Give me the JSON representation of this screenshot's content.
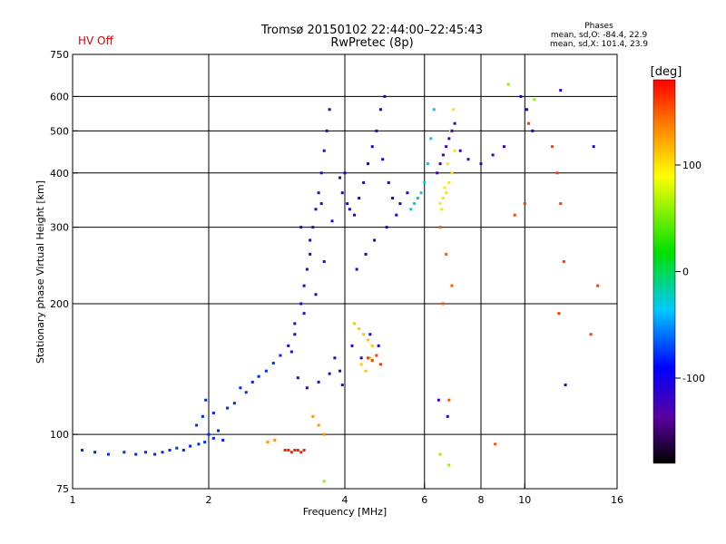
{
  "header": {
    "title_line1": "Tromsø 20150102 22:44:00–22:45:43",
    "title_line2": "RwPretec (8p)",
    "status_text": "HV Off",
    "status_color": "#dd0000",
    "stats_title": "Phases",
    "stats_line1": "mean, sd,O: -84.4, 22.9",
    "stats_line2": "mean, sd,X: 101.4, 23.9"
  },
  "colorbar": {
    "unit": "[deg]",
    "ticks": [
      "100",
      "0",
      "-100"
    ],
    "tick_values": [
      100,
      0,
      -100
    ],
    "range": [
      -180,
      180
    ],
    "colormap": "rainbow"
  },
  "chart_data": {
    "type": "scatter",
    "title": "Tromsø 20150102 22:44:00–22:45:43",
    "subtitle": "RwPretec (8p)",
    "xlabel": "Frequency [MHz]",
    "ylabel": "Stationary phase Virtual Height [km]",
    "x_scale": "log",
    "y_scale": "log",
    "xlim": [
      1,
      16
    ],
    "ylim": [
      75,
      750
    ],
    "x_ticks": [
      "1",
      "2",
      "4",
      "6",
      "8",
      "10",
      "16"
    ],
    "x_tick_values": [
      1,
      2,
      4,
      6,
      8,
      10,
      16
    ],
    "y_ticks": [
      "75",
      "100",
      "200",
      "300",
      "400",
      "500",
      "600",
      "750"
    ],
    "y_tick_values": [
      75,
      100,
      200,
      300,
      400,
      500,
      600,
      750
    ],
    "x_gridlines": [
      2,
      4,
      6,
      8,
      10
    ],
    "y_gridlines": [
      100,
      200,
      300,
      400,
      500,
      600
    ],
    "color_variable": "phase [deg]",
    "series": [
      {
        "x": [
          1.05,
          1.12,
          1.2,
          1.3,
          1.38,
          1.45,
          1.52,
          1.58,
          1.64,
          1.7,
          1.76,
          1.82,
          1.9,
          1.96
        ],
        "y": [
          92,
          91,
          90,
          91,
          90,
          91,
          90,
          91,
          92,
          93,
          92,
          94,
          95,
          96
        ],
        "phase": -80
      },
      {
        "x": [
          1.88,
          1.94,
          2.0,
          2.05,
          2.1,
          2.15,
          2.05,
          1.97,
          2.2,
          2.28,
          2.35,
          2.42,
          2.5,
          2.58,
          2.68,
          2.78,
          2.88
        ],
        "y": [
          105,
          110,
          100,
          98,
          102,
          97,
          112,
          120,
          115,
          118,
          128,
          125,
          132,
          136,
          140,
          146,
          152
        ],
        "phase": -80
      },
      {
        "x": [
          2.95,
          3.0,
          3.05,
          3.1,
          3.15,
          3.2,
          3.25
        ],
        "y": [
          92,
          92,
          91,
          92,
          92,
          91,
          92
        ],
        "phase": 170
      },
      {
        "x": [
          2.7,
          2.8,
          3.4,
          3.5,
          3.6
        ],
        "y": [
          96,
          97,
          110,
          105,
          100
        ],
        "phase": 130
      },
      {
        "x": [
          3.0,
          3.1,
          3.2,
          3.25,
          3.3,
          3.35,
          3.4,
          3.45,
          3.5,
          3.55,
          3.6,
          3.65,
          3.7,
          3.8,
          3.9,
          3.95,
          3.15,
          3.3,
          3.5,
          3.7,
          3.2,
          3.35,
          3.55,
          3.1,
          3.25,
          3.45,
          3.6,
          3.75,
          3.9,
          3.05
        ],
        "y": [
          160,
          180,
          200,
          220,
          240,
          260,
          300,
          330,
          360,
          400,
          450,
          500,
          560,
          150,
          140,
          130,
          135,
          128,
          132,
          138,
          300,
          280,
          340,
          170,
          190,
          210,
          250,
          310,
          390,
          155
        ],
        "phase": -115
      },
      {
        "x": [
          3.95,
          4.0,
          4.05,
          4.1,
          4.2,
          4.3,
          4.4,
          4.5,
          4.6,
          4.7,
          4.8,
          4.9,
          5.0,
          5.1,
          5.3,
          5.5,
          4.15,
          4.35,
          4.55,
          4.75,
          4.95,
          5.2,
          4.25,
          4.45,
          4.65,
          4.85
        ],
        "y": [
          360,
          400,
          340,
          330,
          320,
          350,
          380,
          420,
          460,
          500,
          560,
          600,
          380,
          350,
          340,
          360,
          160,
          150,
          170,
          160,
          300,
          320,
          240,
          260,
          280,
          430
        ],
        "phase": -105
      },
      {
        "x": [
          4.2,
          4.3,
          4.4,
          4.5,
          4.6,
          4.55,
          4.45,
          4.35
        ],
        "y": [
          180,
          175,
          170,
          165,
          160,
          150,
          140,
          145
        ],
        "phase": 110
      },
      {
        "x": [
          4.5,
          4.6,
          4.7,
          4.8
        ],
        "y": [
          150,
          148,
          152,
          145
        ],
        "phase": 160
      },
      {
        "x": [
          5.6,
          5.7,
          5.8,
          5.9,
          6.0,
          6.1,
          6.2,
          6.3
        ],
        "y": [
          330,
          340,
          350,
          360,
          380,
          420,
          480,
          560
        ],
        "phase": -30
      },
      {
        "x": [
          6.5,
          6.6,
          6.7,
          6.8,
          6.9,
          7.0,
          6.55,
          6.65,
          6.75,
          6.85,
          6.95
        ],
        "y": [
          340,
          350,
          360,
          380,
          400,
          450,
          330,
          370,
          420,
          500,
          560
        ],
        "phase": 100
      },
      {
        "x": [
          6.4,
          6.5,
          6.6,
          6.7,
          6.8,
          6.9,
          7.0,
          7.2,
          7.5,
          8.0,
          8.5,
          9.0,
          6.45,
          6.75
        ],
        "y": [
          400,
          420,
          440,
          460,
          480,
          500,
          520,
          450,
          430,
          420,
          440,
          460,
          120,
          110
        ],
        "phase": -120
      },
      {
        "x": [
          6.5,
          6.7,
          6.9,
          6.6,
          6.8,
          8.6
        ],
        "y": [
          300,
          260,
          220,
          200,
          120,
          95
        ],
        "phase": 150
      },
      {
        "x": [
          9.5,
          10.0,
          10.2,
          11.5,
          11.8,
          12.0,
          12.2,
          11.9,
          14.5,
          14.0
        ],
        "y": [
          320,
          340,
          520,
          460,
          400,
          340,
          250,
          190,
          220,
          170
        ],
        "phase": 160
      },
      {
        "x": [
          9.8,
          10.1,
          10.4,
          12.0,
          12.3,
          14.2
        ],
        "y": [
          600,
          560,
          500,
          620,
          130,
          460
        ],
        "phase": -100
      },
      {
        "x": [
          6.5,
          6.8,
          3.6,
          9.2,
          10.5
        ],
        "y": [
          90,
          85,
          78,
          640,
          590
        ],
        "phase": 60
      }
    ]
  }
}
